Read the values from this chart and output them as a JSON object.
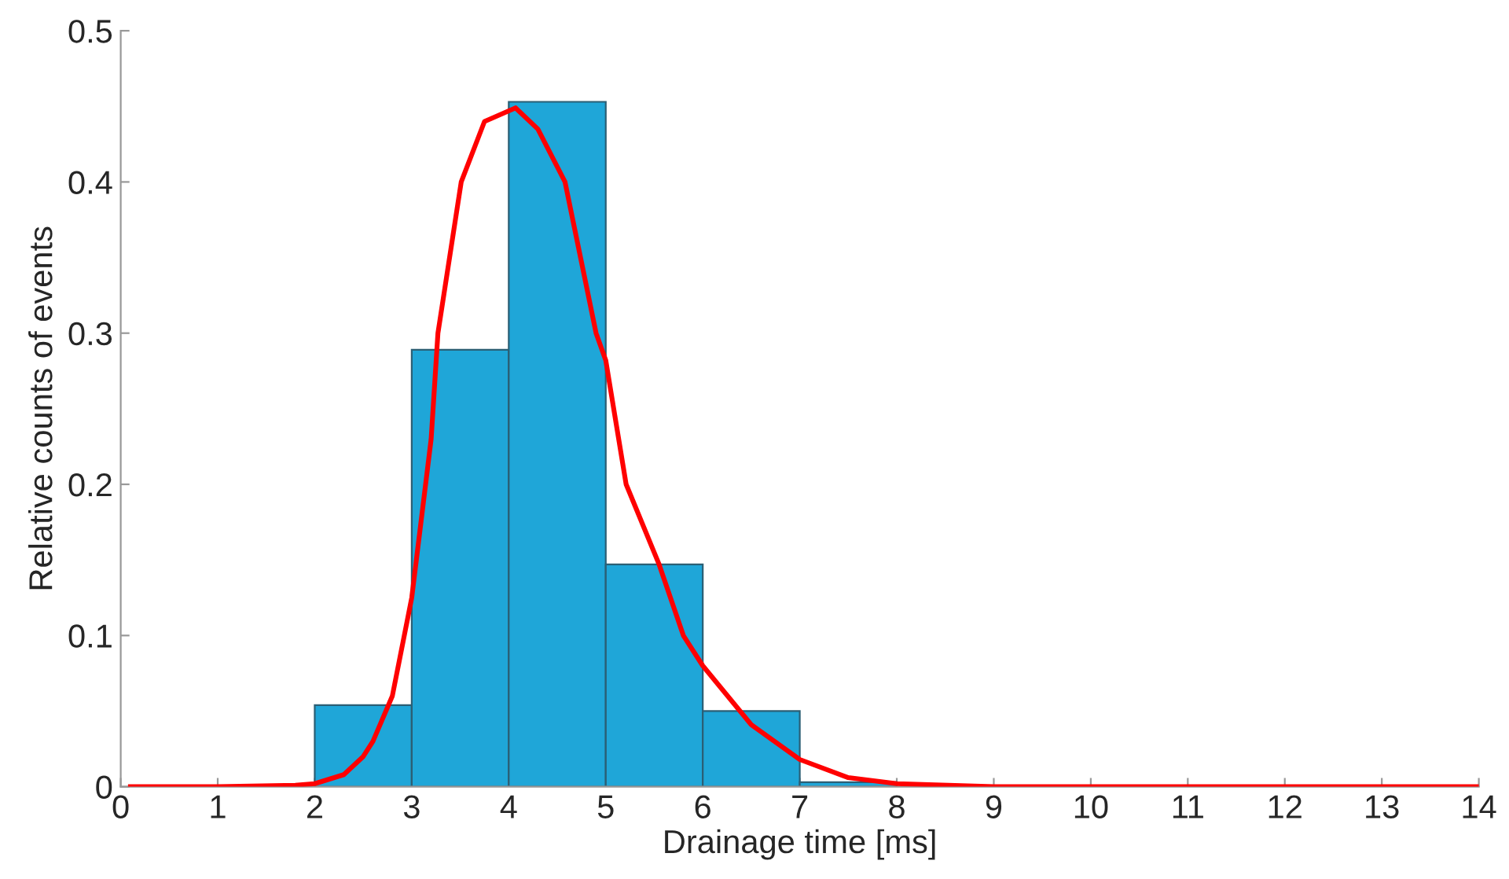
{
  "chart_data": {
    "type": "histogram",
    "xlabel": "Drainage time [ms]",
    "ylabel": "Relative counts of events",
    "bins": [
      2,
      3,
      4,
      5,
      6,
      7,
      8
    ],
    "values": [
      0.054,
      0.289,
      0.453,
      0.147,
      0.05,
      0.003
    ],
    "color": "#1fa6d8",
    "series": [
      {
        "type": "line",
        "color": "#ff0000",
        "x": [
          0.1,
          1,
          1.8,
          2,
          2.3,
          2.5,
          2.6,
          2.8,
          3,
          3.2,
          3.27,
          3.51,
          3.75,
          4.07,
          4.3,
          4.58,
          4.9,
          5,
          5.21,
          5.55,
          5.8,
          6,
          6.5,
          7,
          7.5,
          8,
          9,
          10,
          12,
          14
        ],
        "values": [
          0,
          0,
          0.001,
          0.002,
          0.008,
          0.02,
          0.03,
          0.06,
          0.125,
          0.23,
          0.3,
          0.4,
          0.44,
          0.449,
          0.435,
          0.4,
          0.3,
          0.282,
          0.2,
          0.147,
          0.1,
          0.08,
          0.041,
          0.018,
          0.006,
          0.002,
          0,
          0,
          0,
          0
        ]
      }
    ],
    "xlim": [
      0,
      14
    ],
    "xticks": [
      0,
      1,
      2,
      3,
      4,
      5,
      6,
      7,
      8,
      9,
      10,
      11,
      12,
      13,
      14
    ],
    "ylim": [
      0,
      0.5
    ],
    "yticks": [
      0,
      0.1,
      0.2,
      0.3,
      0.4,
      0.5
    ],
    "grid": false,
    "legend": false
  }
}
